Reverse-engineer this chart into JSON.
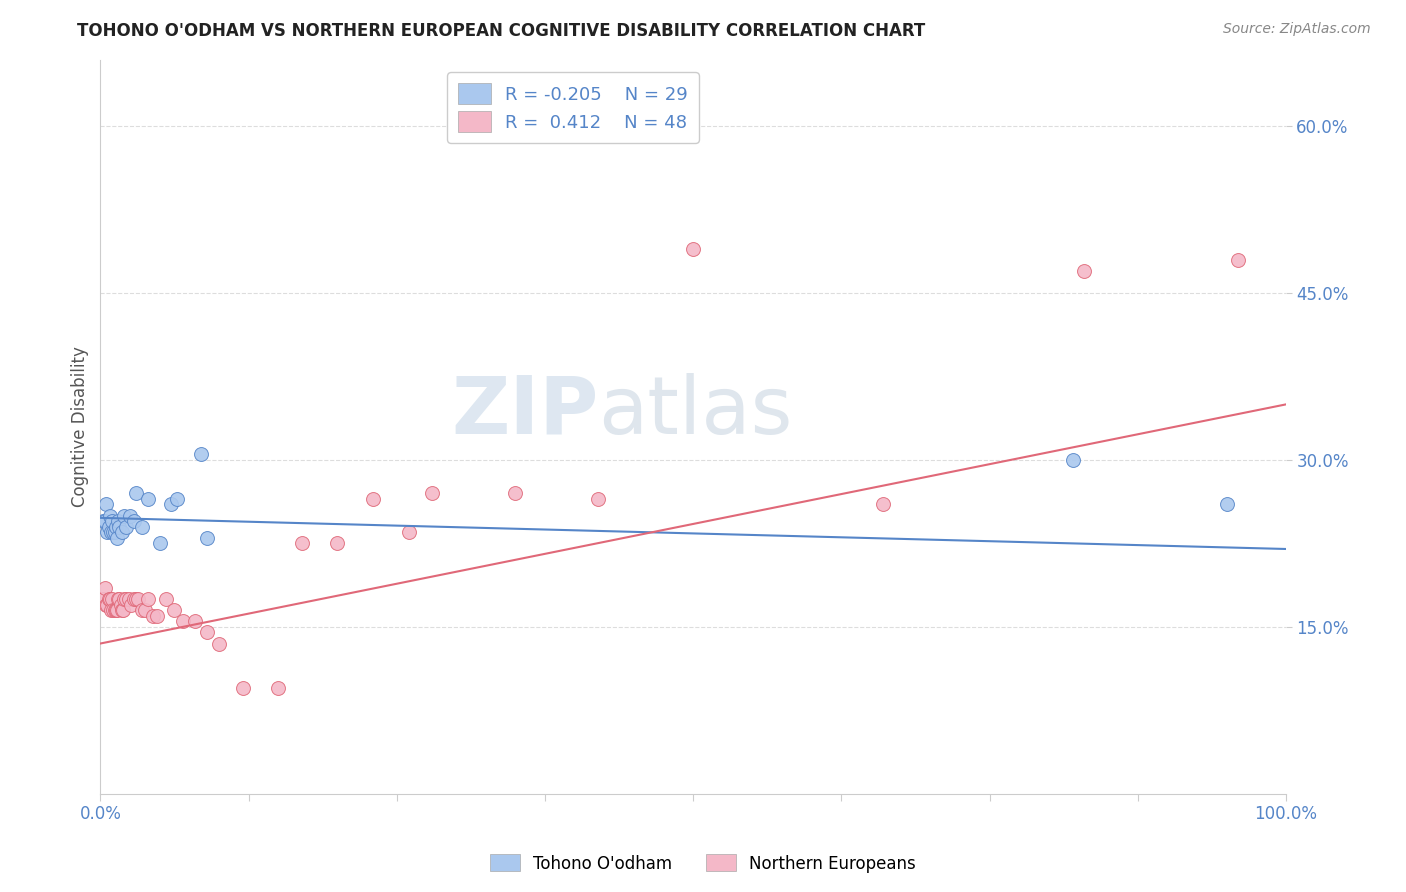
{
  "title": "TOHONO O'ODHAM VS NORTHERN EUROPEAN COGNITIVE DISABILITY CORRELATION CHART",
  "source": "Source: ZipAtlas.com",
  "ylabel": "Cognitive Disability",
  "yticks": [
    0.15,
    0.3,
    0.45,
    0.6
  ],
  "ytick_labels": [
    "15.0%",
    "30.0%",
    "45.0%",
    "60.0%"
  ],
  "xlim": [
    0.0,
    1.0
  ],
  "ylim": [
    0.0,
    0.66
  ],
  "background_color": "#ffffff",
  "legend_R1": "R = -0.205",
  "legend_N1": "N = 29",
  "legend_R2": "R =  0.412",
  "legend_N2": "N = 48",
  "color_blue": "#aac8ee",
  "color_pink": "#f4b8c8",
  "line_blue": "#5585c8",
  "line_pink": "#e06878",
  "tohono_x": [
    0.002,
    0.004,
    0.005,
    0.006,
    0.007,
    0.008,
    0.009,
    0.01,
    0.011,
    0.012,
    0.013,
    0.014,
    0.015,
    0.016,
    0.018,
    0.02,
    0.022,
    0.025,
    0.028,
    0.03,
    0.035,
    0.04,
    0.05,
    0.06,
    0.065,
    0.085,
    0.09,
    0.82,
    0.95
  ],
  "tohono_y": [
    0.245,
    0.245,
    0.26,
    0.235,
    0.24,
    0.25,
    0.235,
    0.245,
    0.235,
    0.235,
    0.24,
    0.23,
    0.245,
    0.24,
    0.235,
    0.25,
    0.24,
    0.25,
    0.245,
    0.27,
    0.24,
    0.265,
    0.225,
    0.26,
    0.265,
    0.305,
    0.23,
    0.3,
    0.26
  ],
  "northern_x": [
    0.002,
    0.004,
    0.005,
    0.006,
    0.007,
    0.008,
    0.009,
    0.01,
    0.011,
    0.012,
    0.013,
    0.014,
    0.015,
    0.016,
    0.017,
    0.018,
    0.019,
    0.02,
    0.022,
    0.024,
    0.026,
    0.028,
    0.03,
    0.032,
    0.035,
    0.038,
    0.04,
    0.044,
    0.048,
    0.055,
    0.062,
    0.07,
    0.08,
    0.09,
    0.1,
    0.12,
    0.15,
    0.17,
    0.2,
    0.23,
    0.26,
    0.28,
    0.35,
    0.42,
    0.5,
    0.66,
    0.83,
    0.96
  ],
  "northern_y": [
    0.175,
    0.185,
    0.17,
    0.17,
    0.175,
    0.175,
    0.165,
    0.175,
    0.165,
    0.165,
    0.165,
    0.165,
    0.175,
    0.175,
    0.17,
    0.165,
    0.165,
    0.175,
    0.175,
    0.175,
    0.17,
    0.175,
    0.175,
    0.175,
    0.165,
    0.165,
    0.175,
    0.16,
    0.16,
    0.175,
    0.165,
    0.155,
    0.155,
    0.145,
    0.135,
    0.095,
    0.095,
    0.225,
    0.225,
    0.265,
    0.235,
    0.27,
    0.27,
    0.265,
    0.49,
    0.26,
    0.47,
    0.48
  ],
  "tohono_line_x": [
    0.0,
    1.0
  ],
  "tohono_line_y": [
    0.248,
    0.22
  ],
  "northern_line_x": [
    0.0,
    1.0
  ],
  "northern_line_y": [
    0.135,
    0.35
  ],
  "grid_color": "#dddddd",
  "spine_color": "#cccccc",
  "xtick_positions": [
    0.0,
    0.125,
    0.25,
    0.375,
    0.5,
    0.625,
    0.75,
    0.875,
    1.0
  ]
}
